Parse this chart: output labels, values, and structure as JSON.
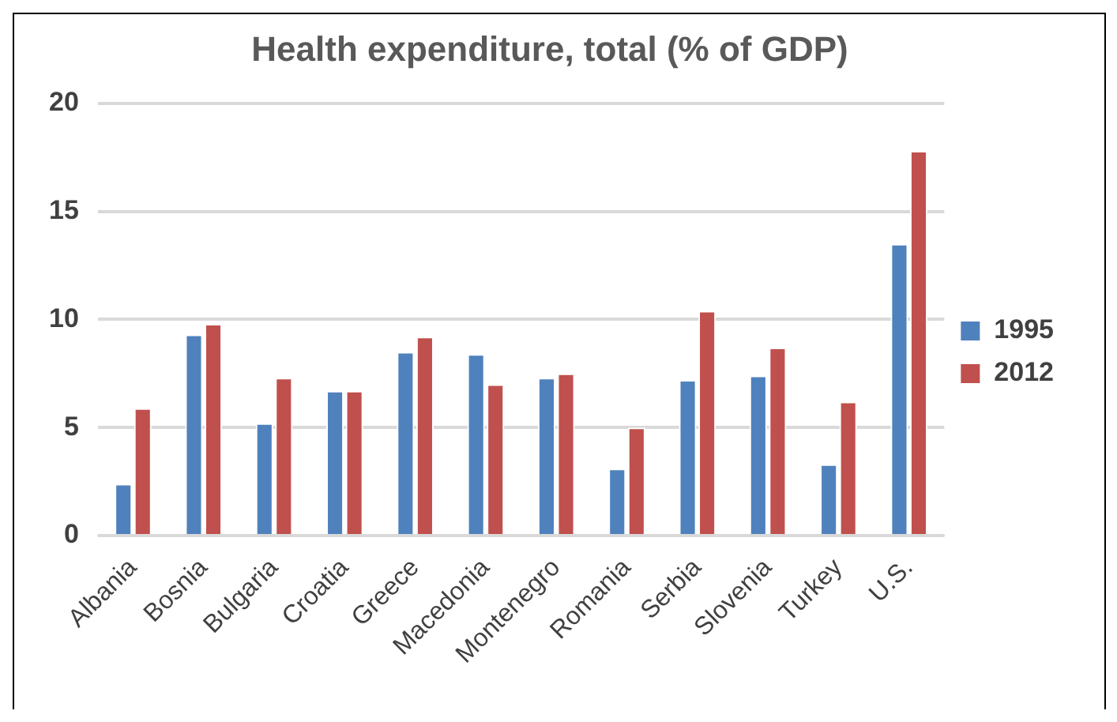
{
  "chart_data": {
    "type": "bar",
    "title": "Health expenditure, total (% of GDP)",
    "categories": [
      "Albania",
      "Bosnia",
      "Bulgaria",
      "Croatia",
      "Greece",
      "Macedonia",
      "Montenegro",
      "Romania",
      "Serbia",
      "Slovenia",
      "Turkey",
      "U.S."
    ],
    "series": [
      {
        "name": "1995",
        "color": "#4f81bd",
        "values": [
          2.4,
          9.3,
          5.2,
          6.7,
          8.5,
          8.4,
          7.3,
          3.1,
          7.2,
          7.4,
          3.3,
          13.5
        ]
      },
      {
        "name": "2012",
        "color": "#c0504d",
        "values": [
          5.9,
          9.8,
          7.3,
          6.7,
          9.2,
          7.0,
          7.5,
          5.0,
          10.4,
          8.7,
          6.2,
          17.8
        ]
      }
    ],
    "ylim": [
      0,
      20
    ],
    "yticks": [
      0,
      5,
      10,
      15,
      20
    ],
    "grid": "y",
    "legend": "right"
  }
}
